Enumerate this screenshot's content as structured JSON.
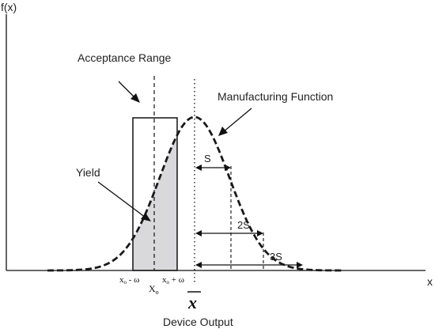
{
  "axes": {
    "y_label": "f(x)",
    "x_label": "x"
  },
  "labels": {
    "acceptance_range": "Acceptance Range",
    "manufacturing_function": "Manufacturing Function",
    "yield": "Yield",
    "device_output": "Device Output",
    "xbar": "x"
  },
  "ticks": {
    "lower_x": "x",
    "lower_sub": "o",
    "lower_rest": " - ω",
    "center_x": "X",
    "center_sub": "o",
    "upper_x": "x",
    "upper_sub": "o",
    "upper_rest": " + ω"
  },
  "spreads": {
    "s1": "S",
    "s2": "2S",
    "s3": "3S"
  },
  "colors": {
    "curve": "#1a1a1a",
    "yield_fill": "#d9d9dc",
    "lines": "#111111"
  }
}
